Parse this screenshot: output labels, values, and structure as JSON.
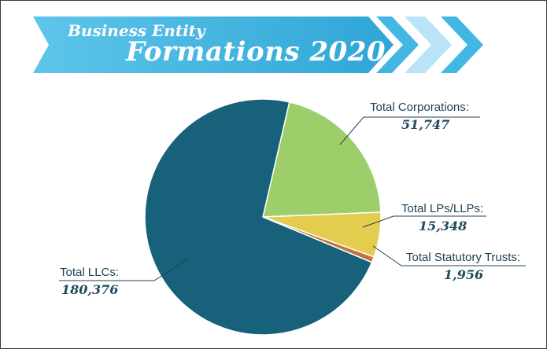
{
  "header": {
    "title_line1": "Business Entity",
    "title_line2": "Formations 2020"
  },
  "colors": {
    "banner_light": "#5ec5ea",
    "banner_dark": "#2fa6d6",
    "chevron_mid": "#43b7e4",
    "chevron_pale": "#b9e4f5",
    "llc": "#17617b",
    "corporations": "#9dce6a",
    "lps": "#e3cc4e",
    "trusts": "#c2743f",
    "leader_line": "#2a3f4f",
    "label_text": "#1f3f54"
  },
  "chart_data": {
    "type": "pie",
    "title": "Business Entity Formations 2020",
    "slices": [
      {
        "label": "Total Corporations:",
        "value": 51747,
        "value_label": "51,747",
        "color": "#9dce6a"
      },
      {
        "label": "Total LPs/LLPs:",
        "value": 15348,
        "value_label": "15,348",
        "color": "#e3cc4e"
      },
      {
        "label": "Total Statutory Trusts:",
        "value": 1956,
        "value_label": "1,956",
        "color": "#c2743f"
      },
      {
        "label": "Total LLCs:",
        "value": 180376,
        "value_label": "180,376",
        "color": "#17617b"
      }
    ],
    "legend": "none"
  },
  "labels": {
    "corporations": {
      "name": "Total Corporations:",
      "value": "51,747"
    },
    "lps": {
      "name": "Total LPs/LLPs:",
      "value": "15,348"
    },
    "trusts": {
      "name": "Total Statutory Trusts:",
      "value": "1,956"
    },
    "llcs": {
      "name": "Total LLCs:",
      "value": "180,376"
    }
  }
}
